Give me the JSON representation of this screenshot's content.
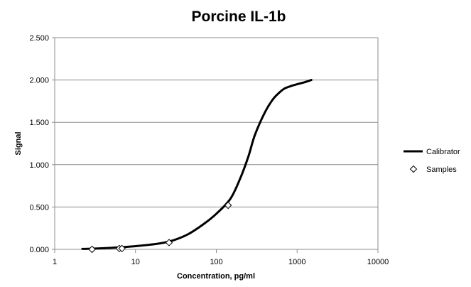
{
  "chart_data": {
    "type": "scatter",
    "title": "Porcine IL-1b",
    "xlabel": "Concentration, pg/ml",
    "ylabel": "Signal",
    "x_scale": "log",
    "xlim": [
      1,
      10000
    ],
    "ylim": [
      0,
      2.5
    ],
    "x_ticks": [
      1,
      10,
      100,
      1000,
      10000
    ],
    "x_tick_labels": [
      "1",
      "10",
      "100",
      "1000",
      "10000"
    ],
    "y_ticks": [
      0,
      0.5,
      1,
      1.5,
      2,
      2.5
    ],
    "y_tick_labels": [
      "0.000",
      "0.500",
      "1.000",
      "1.500",
      "2.000",
      "2.500"
    ],
    "grid": "horizontal",
    "legend_position": "right",
    "series": [
      {
        "name": "Calibrator",
        "style": "line",
        "color": "#000000",
        "x": [
          2.2,
          3,
          5,
          8,
          12,
          20,
          30,
          45,
          70,
          100,
          150,
          200,
          250,
          300,
          400,
          500,
          600,
          700,
          850,
          1000,
          1200,
          1500
        ],
        "y": [
          0.005,
          0.008,
          0.018,
          0.03,
          0.045,
          0.07,
          0.11,
          0.18,
          0.3,
          0.42,
          0.6,
          0.85,
          1.1,
          1.35,
          1.62,
          1.77,
          1.85,
          1.9,
          1.93,
          1.95,
          1.97,
          2.0
        ]
      },
      {
        "name": "Samples",
        "style": "marker",
        "marker": "diamond",
        "color": "#000000",
        "x": [
          2.9,
          6.3,
          6.8,
          26,
          140
        ],
        "y": [
          0.0,
          0.01,
          0.01,
          0.08,
          0.52
        ]
      }
    ]
  }
}
